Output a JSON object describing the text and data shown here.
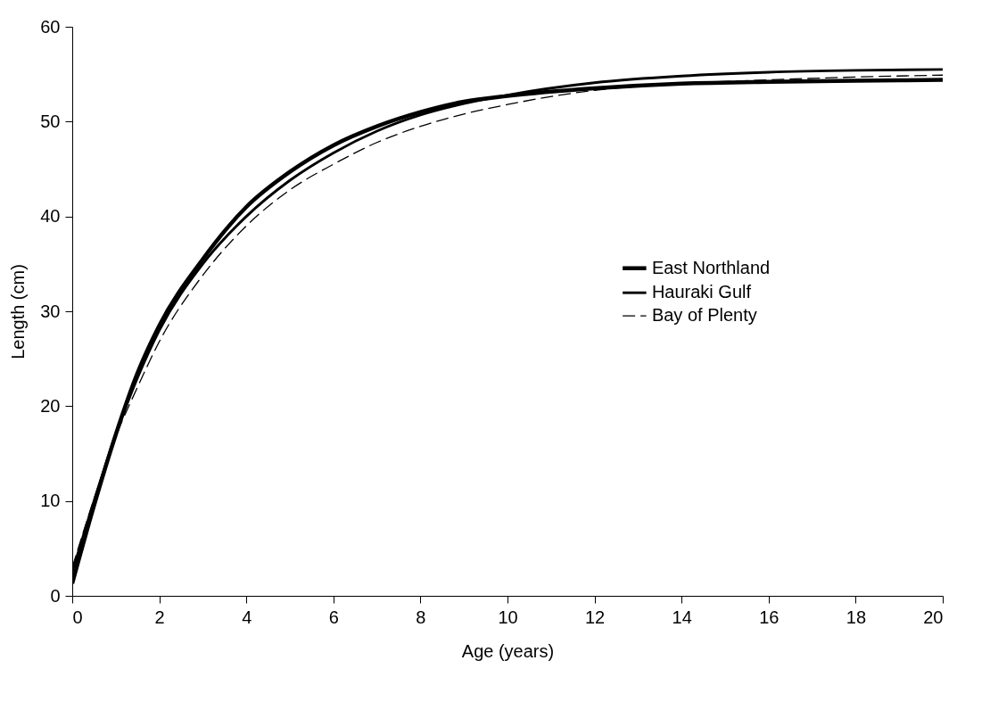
{
  "chart_data": {
    "type": "line",
    "xlabel": "Age (years)",
    "ylabel": "Length (cm)",
    "x": [
      0,
      0.5,
      1,
      1.5,
      2,
      3,
      4,
      5,
      6,
      7,
      8,
      9,
      10,
      12,
      14,
      16,
      18,
      20
    ],
    "series": [
      {
        "name": "East Northland",
        "color": "#000000",
        "line_style": "solid",
        "values": [
          1.3,
          9.5,
          17,
          23.5,
          28.5,
          35.5,
          41,
          44.7,
          47.5,
          49.5,
          51,
          52.1,
          52.7,
          53.5,
          54,
          54.2,
          54.3,
          54.4
        ]
      },
      {
        "name": "Hauraki Gulf",
        "color": "#000000",
        "line_style": "solid",
        "values": [
          2.5,
          10,
          17,
          23,
          28,
          35,
          40,
          43.8,
          46.7,
          49,
          50.7,
          51.9,
          52.8,
          54.1,
          54.8,
          55.2,
          55.4,
          55.5
        ]
      },
      {
        "name": "Bay of Plenty",
        "color": "#000000",
        "line_style": "dashed",
        "values": [
          3,
          10.2,
          16.8,
          22,
          26.8,
          33.8,
          39,
          42.8,
          45.5,
          47.8,
          49.5,
          50.8,
          51.8,
          53.3,
          54,
          54.4,
          54.7,
          54.9
        ]
      }
    ],
    "xlim": [
      0,
      20
    ],
    "xticks": [
      0,
      2,
      4,
      6,
      8,
      10,
      12,
      14,
      16,
      18,
      20
    ],
    "ylim": [
      0,
      60
    ],
    "yticks": [
      0,
      10,
      20,
      30,
      40,
      50,
      60
    ],
    "grid": false,
    "legend": "right",
    "marker": "none"
  }
}
